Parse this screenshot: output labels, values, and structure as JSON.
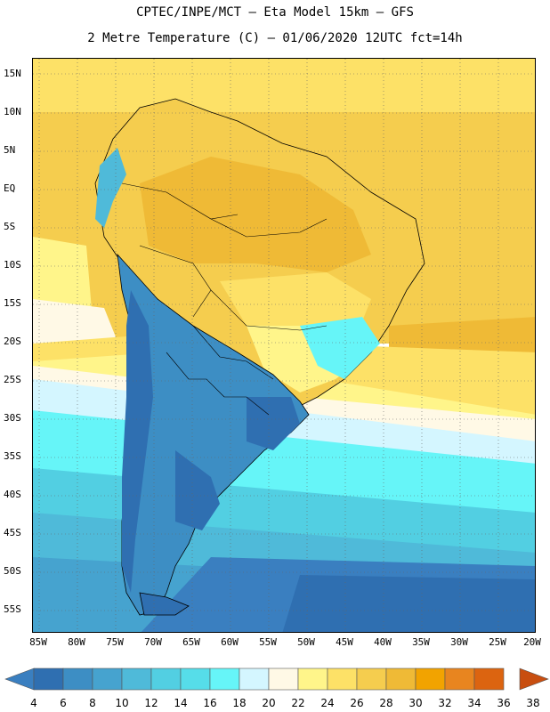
{
  "header": {
    "line1": "CPTEC/INPE/MCT –  Eta Model 15km – GFS",
    "line2": "2 Metre Temperature (C) – 01/06/2020 12UTC fct=14h"
  },
  "map": {
    "region": "South America",
    "lat_labels": [
      "15N",
      "10N",
      "5N",
      "EQ",
      "5S",
      "10S",
      "15S",
      "20S",
      "25S",
      "30S",
      "35S",
      "40S",
      "45S",
      "50S",
      "55S"
    ],
    "lon_labels": [
      "85W",
      "80W",
      "75W",
      "70W",
      "65W",
      "60W",
      "55W",
      "50W",
      "45W",
      "40W",
      "35W",
      "30W",
      "25W",
      "20W"
    ]
  },
  "colorbar": {
    "labels": [
      "4",
      "6",
      "8",
      "10",
      "12",
      "14",
      "16",
      "18",
      "20",
      "22",
      "24",
      "26",
      "28",
      "30",
      "32",
      "34",
      "36",
      "38"
    ],
    "colors": [
      "#3a7fc0",
      "#2f6fb1",
      "#3d8ec4",
      "#46a3cf",
      "#4fbad9",
      "#52cfe2",
      "#56dde9",
      "#66f5f8",
      "#d4f6ff",
      "#fff9e6",
      "#fff58a",
      "#fde167",
      "#f5cd4e",
      "#efba36",
      "#f2a300",
      "#e8851f",
      "#dc6410",
      "#c84e10"
    ]
  }
}
